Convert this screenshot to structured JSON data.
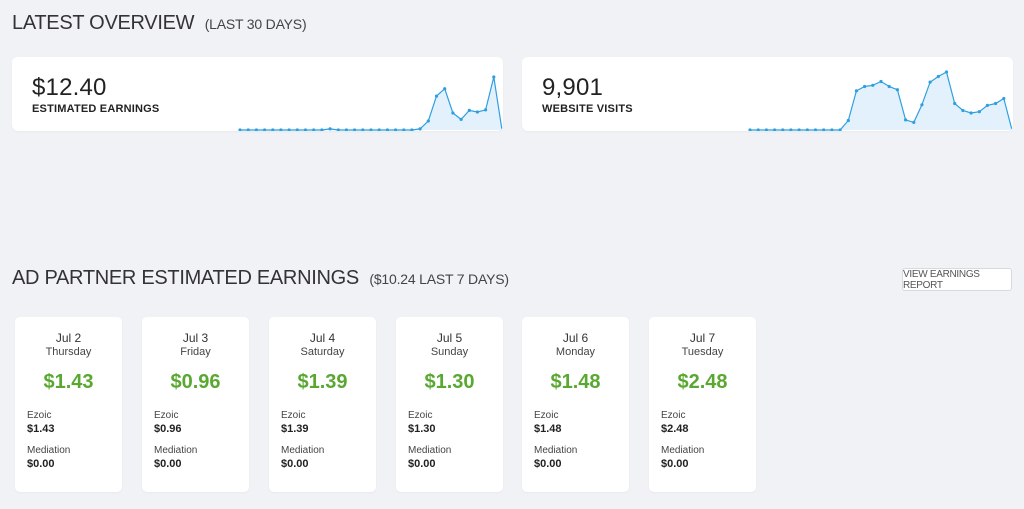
{
  "overview": {
    "title": "LATEST OVERVIEW",
    "subtitle": "(LAST 30 DAYS)",
    "cards": [
      {
        "value": "$12.40",
        "label": "ESTIMATED EARNINGS",
        "spark": [
          0,
          0,
          0,
          0,
          0,
          0,
          0,
          0,
          0,
          0,
          0,
          0.02,
          0,
          0,
          0,
          0,
          0,
          0,
          0,
          0,
          0,
          0,
          0.02,
          0.17,
          0.64,
          0.78,
          0.32,
          0.2,
          0.37,
          0.34,
          0.38,
          1.0,
          0
        ]
      },
      {
        "value": "9,901",
        "label": "WEBSITE VISITS",
        "spark": [
          0,
          0,
          0,
          0,
          0,
          0,
          0,
          0,
          0,
          0,
          0,
          0,
          0.15,
          0.62,
          0.69,
          0.71,
          0.77,
          0.69,
          0.64,
          0.16,
          0.12,
          0.4,
          0.76,
          0.85,
          0.92,
          0.42,
          0.31,
          0.27,
          0.29,
          0.39,
          0.42,
          0.5,
          0
        ]
      }
    ],
    "accent": "#2f9fe0",
    "fill": "#e3f1fc"
  },
  "partner": {
    "title": "AD PARTNER ESTIMATED EARNINGS",
    "subtitle": "($10.24 LAST 7 DAYS)",
    "report_button": "VIEW EARNINGS REPORT",
    "days": [
      {
        "date": "Jul 2",
        "weekday": "Thursday",
        "total": "$1.43",
        "ezoic_label": "Ezoic",
        "ezoic": "$1.43",
        "mediation_label": "Mediation",
        "mediation": "$0.00"
      },
      {
        "date": "Jul 3",
        "weekday": "Friday",
        "total": "$0.96",
        "ezoic_label": "Ezoic",
        "ezoic": "$0.96",
        "mediation_label": "Mediation",
        "mediation": "$0.00"
      },
      {
        "date": "Jul 4",
        "weekday": "Saturday",
        "total": "$1.39",
        "ezoic_label": "Ezoic",
        "ezoic": "$1.39",
        "mediation_label": "Mediation",
        "mediation": "$0.00"
      },
      {
        "date": "Jul 5",
        "weekday": "Sunday",
        "total": "$1.30",
        "ezoic_label": "Ezoic",
        "ezoic": "$1.30",
        "mediation_label": "Mediation",
        "mediation": "$0.00"
      },
      {
        "date": "Jul 6",
        "weekday": "Monday",
        "total": "$1.48",
        "ezoic_label": "Ezoic",
        "ezoic": "$1.48",
        "mediation_label": "Mediation",
        "mediation": "$0.00"
      },
      {
        "date": "Jul 7",
        "weekday": "Tuesday",
        "total": "$2.48",
        "ezoic_label": "Ezoic",
        "ezoic": "$2.48",
        "mediation_label": "Mediation",
        "mediation": "$0.00"
      }
    ],
    "total_color": "#5aa832"
  }
}
